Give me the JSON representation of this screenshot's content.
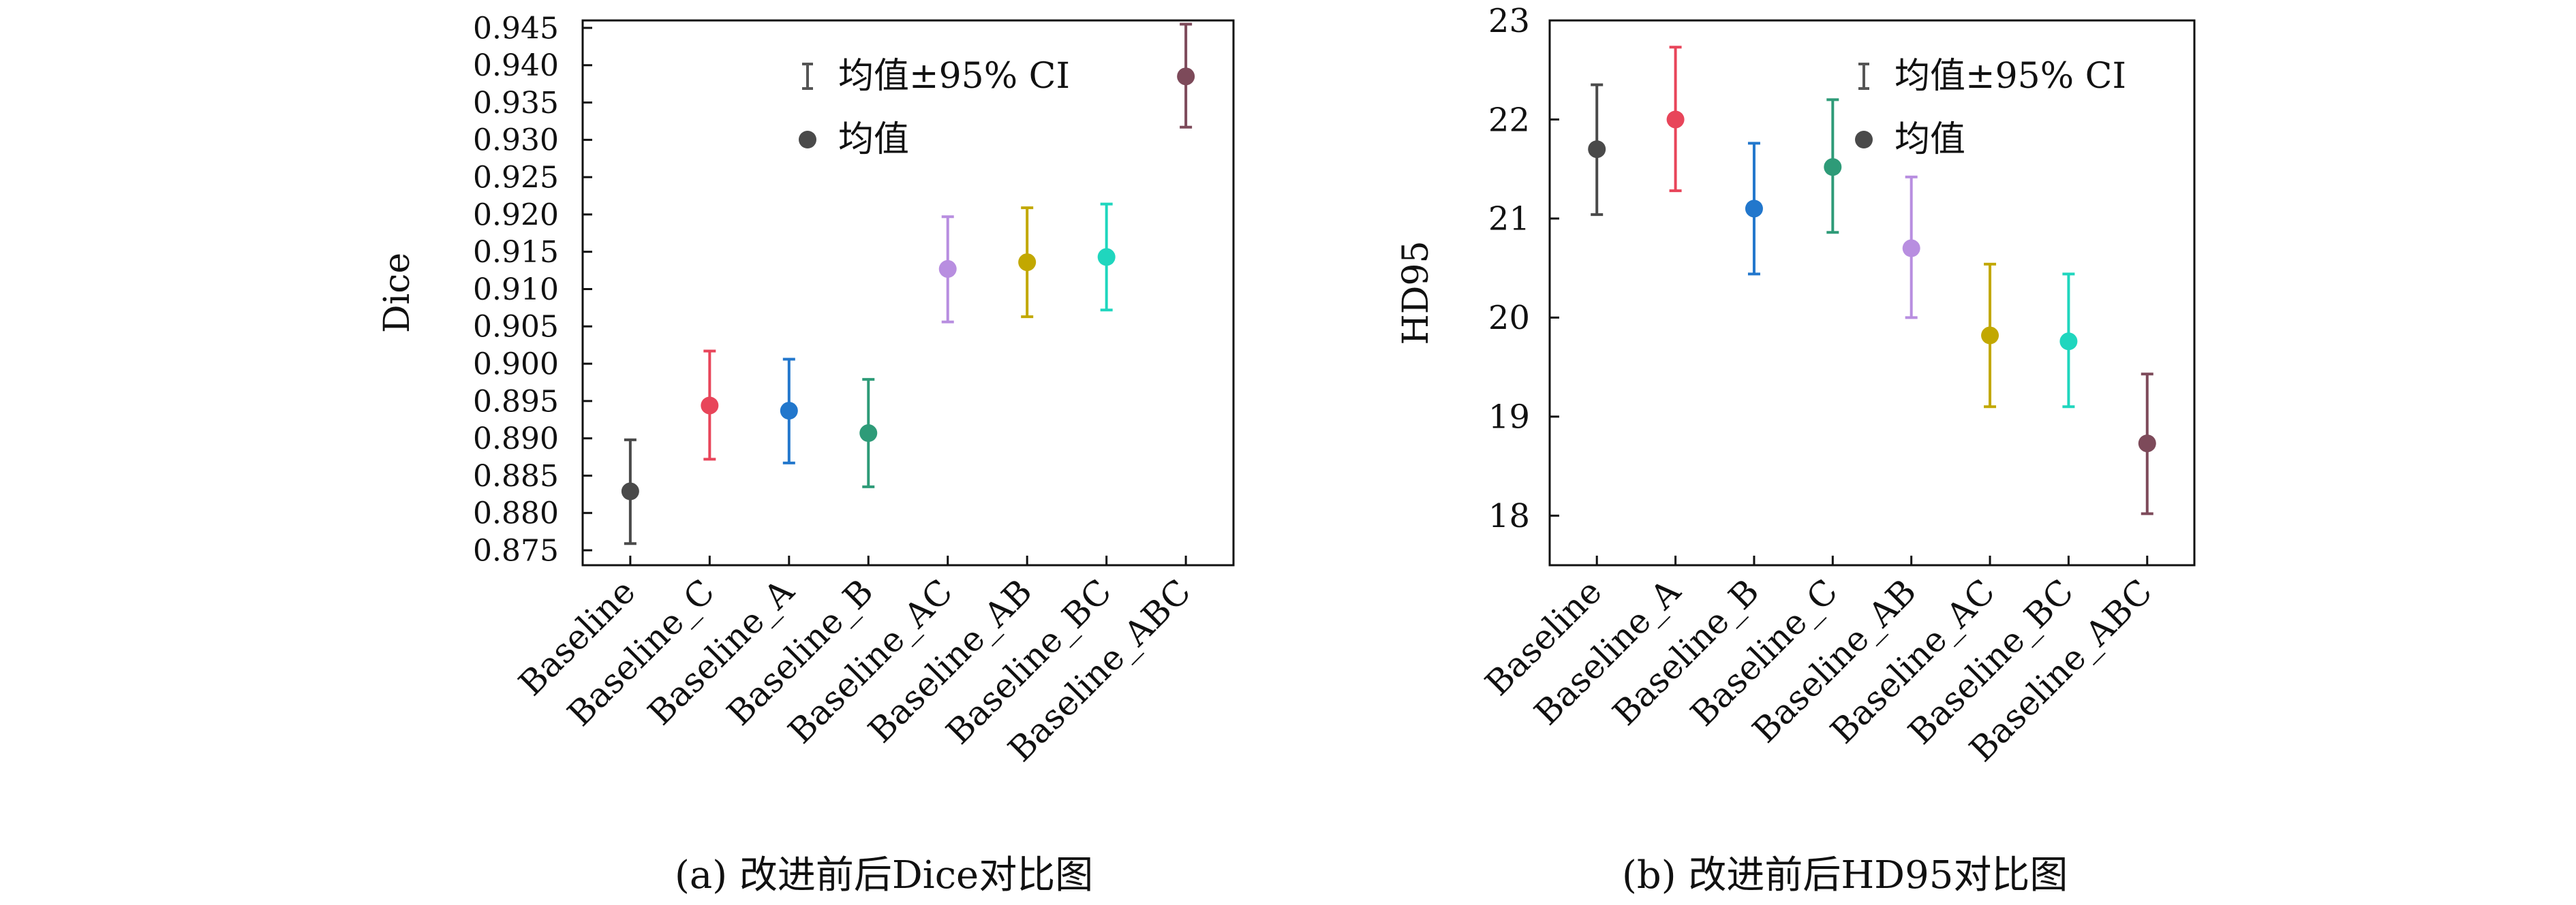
{
  "chart_data": [
    {
      "type": "scatter",
      "subtype": "errorbar",
      "caption": "(a) 改进前后Dice对比图",
      "ylabel": "Dice",
      "xlabel": "",
      "ylim": [
        0.873,
        0.946
      ],
      "yticks": [
        "0.875",
        "0.880",
        "0.885",
        "0.890",
        "0.895",
        "0.900",
        "0.905",
        "0.910",
        "0.915",
        "0.920",
        "0.925",
        "0.930",
        "0.935",
        "0.940",
        "0.945"
      ],
      "categories": [
        "Baseline",
        "Baseline_C",
        "Baseline_A",
        "Baseline_B",
        "Baseline_AC",
        "Baseline_AB",
        "Baseline_BC",
        "Baseline_ABC"
      ],
      "means": [
        0.8829,
        0.8944,
        0.8937,
        0.8907,
        0.9127,
        0.9136,
        0.9143,
        0.9385
      ],
      "ci_lower": [
        0.8759,
        0.8872,
        0.8867,
        0.8835,
        0.9056,
        0.9063,
        0.9072,
        0.9317
      ],
      "ci_upper": [
        0.8898,
        0.9017,
        0.9006,
        0.8979,
        0.9197,
        0.9209,
        0.9214,
        0.9455
      ],
      "colors": [
        "#4a4a4a",
        "#e8455a",
        "#2277cc",
        "#2e9b78",
        "#b88ee0",
        "#c2a800",
        "#1fd6be",
        "#7d4a5a"
      ],
      "legend": {
        "placement": "top-right",
        "errorbar_label": "均值±95% CI",
        "mean_label": "均值"
      },
      "grid": false
    },
    {
      "type": "scatter",
      "subtype": "errorbar",
      "caption": "(b) 改进前后HD95对比图",
      "ylabel": "HD95",
      "xlabel": "",
      "ylim": [
        17.5,
        23.0
      ],
      "yticks": [
        "18",
        "19",
        "20",
        "21",
        "22",
        "23"
      ],
      "categories": [
        "Baseline",
        "Baseline_A",
        "Baseline_B",
        "Baseline_C",
        "Baseline_AB",
        "Baseline_AC",
        "Baseline_BC",
        "Baseline_ABC"
      ],
      "means": [
        21.7,
        22.0,
        21.1,
        21.52,
        20.7,
        19.82,
        19.76,
        18.73
      ],
      "ci_lower": [
        21.04,
        21.28,
        20.44,
        20.86,
        20.0,
        19.1,
        19.1,
        18.02
      ],
      "ci_upper": [
        22.35,
        22.73,
        21.76,
        22.2,
        21.42,
        20.54,
        20.44,
        19.43
      ],
      "colors": [
        "#4a4a4a",
        "#e8455a",
        "#2277cc",
        "#2e9b78",
        "#b88ee0",
        "#c2a800",
        "#1fd6be",
        "#7d4a5a"
      ],
      "legend": {
        "placement": "top-right",
        "errorbar_label": "均值±95% CI",
        "mean_label": "均值"
      },
      "grid": false
    }
  ]
}
